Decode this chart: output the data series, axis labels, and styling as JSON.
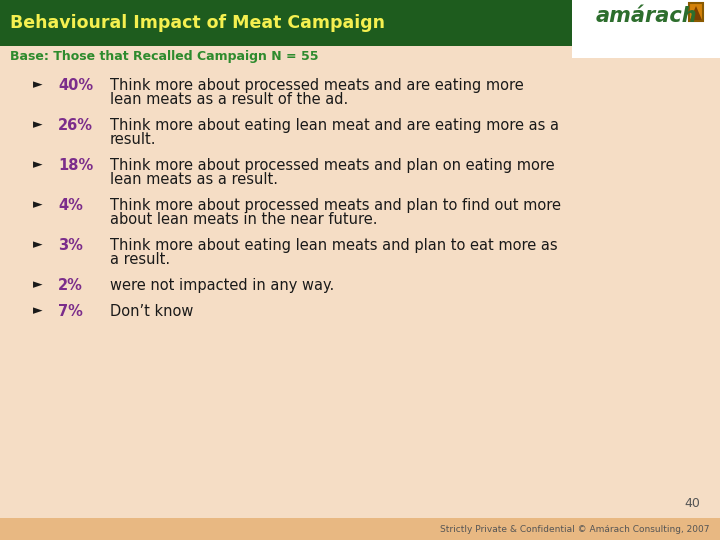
{
  "title": "Behavioural Impact of Meat Campaign",
  "subtitle": "Base: Those that Recalled Campaign N = 55",
  "header_bg": "#1e5c1e",
  "content_bg": "#f5ddc5",
  "footer_bg": "#e8b882",
  "title_color": "#f5f050",
  "subtitle_color": "#2e8b2e",
  "percent_color": "#7b2d8b",
  "text_color": "#1a1a1a",
  "logo_text": "amárach",
  "logo_color": "#2d6e2d",
  "footer_text": "Strictly Private & Confidential © Amárach Consulting, 2007",
  "page_num": "40",
  "bullets": [
    {
      "pct": "40%",
      "text": "Think more about processed meats and are eating more\nlean meats as a result of the ad."
    },
    {
      "pct": "26%",
      "text": "Think more about eating lean meat and are eating more as a\nresult."
    },
    {
      "pct": "18%",
      "text": "Think more about processed meats and plan on eating more\nlean meats as a result."
    },
    {
      "pct": "4%",
      "text": "Think more about processed meats and plan to find out more\nabout lean meats in the near future."
    },
    {
      "pct": "3%",
      "text": "Think more about eating lean meats and plan to eat more as\na result."
    },
    {
      "pct": "2%",
      "text": "were not impacted in any way."
    },
    {
      "pct": "7%",
      "text": "Don’t know"
    }
  ]
}
